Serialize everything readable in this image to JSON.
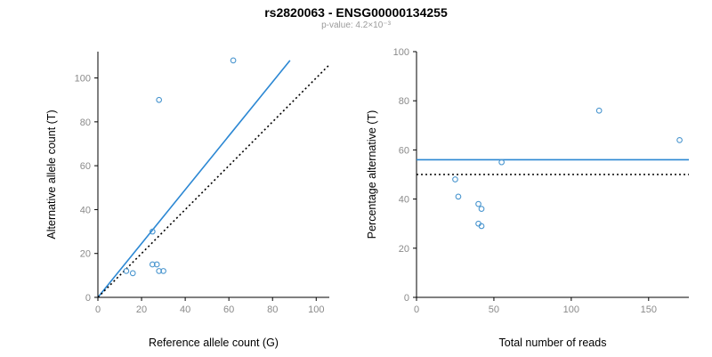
{
  "header": {
    "title": "rs2820063 - ENSG00000134255",
    "subtitle": "p-value: 4.2×10⁻³"
  },
  "colors": {
    "accent_line": "#2b87d3",
    "point_stroke": "#4a96cf",
    "identity_line": "#000000",
    "tick_label": "#8a8a8a",
    "subtitle": "#9a9a9a"
  },
  "chart_data": [
    {
      "type": "scatter",
      "name": "allele-counts-scatter",
      "xlabel": "Reference allele count (G)",
      "ylabel": "Alternative allele count (T)",
      "xlim": [
        0,
        106
      ],
      "ylim": [
        0,
        112
      ],
      "xticks": [
        0,
        20,
        40,
        60,
        80,
        100
      ],
      "yticks": [
        0,
        20,
        40,
        60,
        80,
        100
      ],
      "grid": false,
      "legend": false,
      "points": [
        [
          13,
          12
        ],
        [
          16,
          11
        ],
        [
          25,
          15
        ],
        [
          27,
          15
        ],
        [
          28,
          12
        ],
        [
          30,
          12
        ],
        [
          25,
          30
        ],
        [
          28,
          90
        ],
        [
          62,
          108
        ]
      ],
      "lines": [
        {
          "name": "fit-line",
          "style": "solid",
          "color": "accent_line",
          "x1": 0,
          "y1": 0,
          "x2": 88,
          "y2": 108
        },
        {
          "name": "identity-line",
          "style": "dotted",
          "color": "identity_line",
          "x1": 0,
          "y1": 0,
          "x2": 106,
          "y2": 106
        }
      ]
    },
    {
      "type": "scatter",
      "name": "percentage-vs-reads-scatter",
      "xlabel": "Total number of reads",
      "ylabel": "Percentage alternative (T)",
      "xlim": [
        0,
        176
      ],
      "ylim": [
        0,
        100
      ],
      "xticks": [
        0,
        50,
        100,
        150
      ],
      "yticks": [
        0,
        20,
        40,
        60,
        80,
        100
      ],
      "grid": false,
      "legend": false,
      "points": [
        [
          25,
          48
        ],
        [
          27,
          41
        ],
        [
          40,
          38
        ],
        [
          42,
          36
        ],
        [
          40,
          30
        ],
        [
          42,
          29
        ],
        [
          55,
          55
        ],
        [
          118,
          76
        ],
        [
          170,
          64
        ]
      ],
      "lines": [
        {
          "name": "mean-percentage-line",
          "style": "solid",
          "color": "accent_line",
          "x1": 0,
          "y1": 56,
          "x2": 176,
          "y2": 56
        },
        {
          "name": "expected-50pct-line",
          "style": "dotted",
          "color": "identity_line",
          "x1": 0,
          "y1": 50,
          "x2": 176,
          "y2": 50
        }
      ]
    }
  ]
}
